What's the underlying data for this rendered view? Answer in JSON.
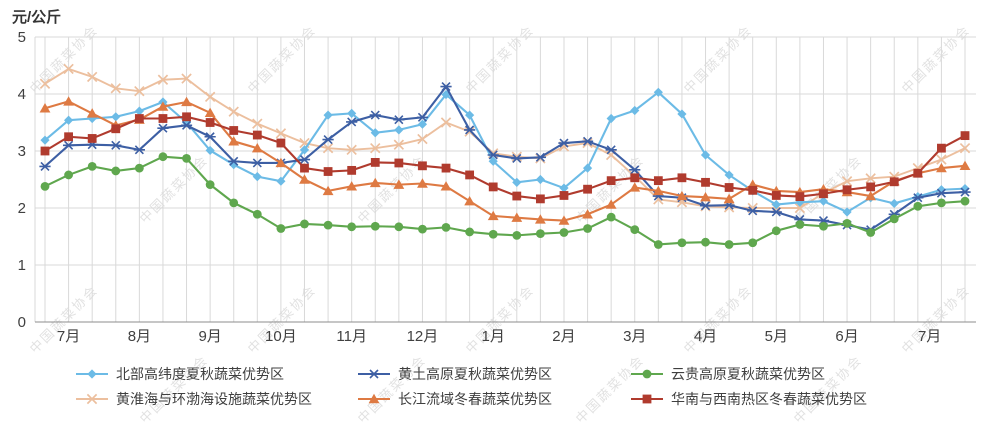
{
  "watermark": {
    "text": "中国蔬菜协会",
    "color": "#c9c9c9"
  },
  "chart_data": {
    "type": "line",
    "ylabel": "元/公斤",
    "ylim": [
      0,
      5
    ],
    "yticks": [
      0,
      1,
      2,
      3,
      4,
      5
    ],
    "grid": true,
    "x_months": [
      "7月",
      "8月",
      "9月",
      "10月",
      "11月",
      "12月",
      "1月",
      "2月",
      "3月",
      "4月",
      "5月",
      "6月",
      "7月"
    ],
    "points_per_month": 3,
    "legend_position": "bottom",
    "legend_rows": [
      [
        0,
        1,
        2
      ],
      [
        3,
        4,
        5
      ]
    ],
    "series": [
      {
        "name": "北部高纬度夏秋蔬菜优势区",
        "color": "#6CBBE6",
        "marker": "diamond",
        "values": [
          3.19,
          3.54,
          3.57,
          3.6,
          3.7,
          3.86,
          3.5,
          3.01,
          2.76,
          2.55,
          2.47,
          3.02,
          3.63,
          3.66,
          3.32,
          3.37,
          3.47,
          3.99,
          3.63,
          2.82,
          2.45,
          2.5,
          2.35,
          2.7,
          3.57,
          3.71,
          4.03,
          3.65,
          2.93,
          2.58,
          2.3,
          2.06,
          2.1,
          2.12,
          1.93,
          2.18,
          2.08,
          2.2,
          2.32,
          2.34
        ]
      },
      {
        "name": "黄土高原夏秋蔬菜优势区",
        "color": "#3D5FA4",
        "marker": "asterisk",
        "values": [
          2.73,
          3.1,
          3.11,
          3.1,
          3.02,
          3.4,
          3.45,
          3.25,
          2.82,
          2.79,
          2.79,
          2.85,
          3.2,
          3.51,
          3.63,
          3.55,
          3.59,
          4.13,
          3.37,
          2.93,
          2.87,
          2.89,
          3.14,
          3.17,
          3.02,
          2.67,
          2.21,
          2.18,
          2.04,
          2.05,
          1.95,
          1.93,
          1.8,
          1.78,
          1.7,
          1.62,
          1.89,
          2.18,
          2.26,
          2.28
        ]
      },
      {
        "name": "云贵高原夏秋蔬菜优势区",
        "color": "#5FA74E",
        "marker": "circle",
        "values": [
          2.38,
          2.58,
          2.73,
          2.65,
          2.7,
          2.9,
          2.87,
          2.41,
          2.09,
          1.89,
          1.64,
          1.72,
          1.7,
          1.67,
          1.68,
          1.67,
          1.63,
          1.66,
          1.58,
          1.54,
          1.52,
          1.55,
          1.57,
          1.64,
          1.84,
          1.62,
          1.36,
          1.39,
          1.4,
          1.36,
          1.39,
          1.6,
          1.71,
          1.68,
          1.73,
          1.57,
          1.81,
          2.03,
          2.09,
          2.12
        ]
      },
      {
        "name": "黄淮海与环渤海设施蔬菜优势区",
        "color": "#ECBF9E",
        "marker": "x",
        "values": [
          4.18,
          4.44,
          4.3,
          4.1,
          4.05,
          4.25,
          4.27,
          3.95,
          3.69,
          3.48,
          3.31,
          3.14,
          3.05,
          3.02,
          3.05,
          3.11,
          3.21,
          3.5,
          3.34,
          2.96,
          2.9,
          2.87,
          3.08,
          3.14,
          2.93,
          2.56,
          2.15,
          2.1,
          2.03,
          2.01,
          2.0,
          2.0,
          2.0,
          2.26,
          2.47,
          2.52,
          2.55,
          2.7,
          2.85,
          3.05
        ]
      },
      {
        "name": "长江流域冬春蔬菜优势区",
        "color": "#DE7A43",
        "marker": "triangle",
        "values": [
          3.75,
          3.87,
          3.66,
          3.45,
          3.55,
          3.78,
          3.86,
          3.67,
          3.17,
          3.05,
          2.79,
          2.5,
          2.3,
          2.38,
          2.44,
          2.41,
          2.43,
          2.38,
          2.12,
          1.86,
          1.83,
          1.8,
          1.78,
          1.89,
          2.06,
          2.36,
          2.3,
          2.21,
          2.19,
          2.16,
          2.41,
          2.3,
          2.28,
          2.33,
          2.28,
          2.21,
          2.47,
          2.61,
          2.7,
          2.74
        ]
      },
      {
        "name": "华南与西南热区冬春蔬菜优势区",
        "color": "#B03B2E",
        "marker": "square",
        "values": [
          3.0,
          3.25,
          3.22,
          3.39,
          3.57,
          3.57,
          3.6,
          3.5,
          3.36,
          3.28,
          3.14,
          2.7,
          2.64,
          2.66,
          2.8,
          2.79,
          2.74,
          2.7,
          2.58,
          2.37,
          2.21,
          2.16,
          2.22,
          2.33,
          2.48,
          2.53,
          2.48,
          2.53,
          2.45,
          2.36,
          2.31,
          2.22,
          2.2,
          2.25,
          2.32,
          2.37,
          2.46,
          2.61,
          3.05,
          3.27
        ]
      }
    ],
    "colors": {
      "gridline": "#d9d9d9",
      "axis_line": "#8c8c8c",
      "tick_text": "#404040"
    }
  }
}
